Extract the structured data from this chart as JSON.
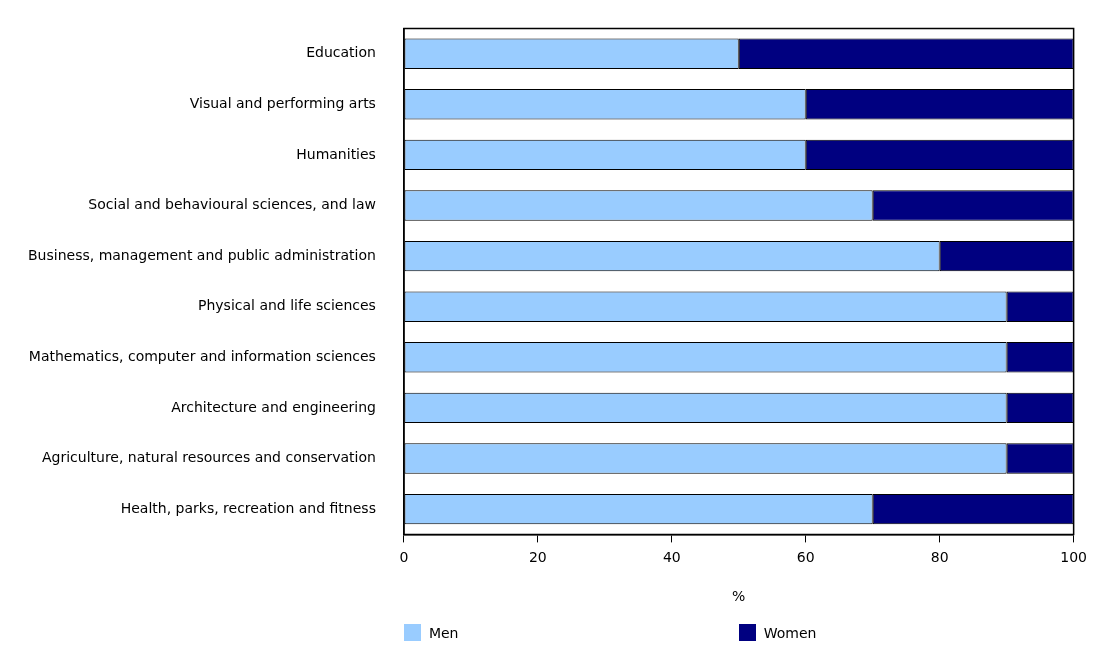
{
  "chart_data": {
    "type": "bar",
    "orientation": "horizontal",
    "stacked": true,
    "xlabel": "%",
    "categories": [
      "Education",
      "Visual and performing arts",
      "Humanities",
      "Social and behavioural sciences, and law",
      "Business, management and public administration",
      "Physical and life sciences",
      "Mathematics, computer and information sciences",
      "Architecture and engineering",
      "Agriculture, natural resources and conservation",
      "Health, parks, recreation and fitness"
    ],
    "series": [
      {
        "name": "Men",
        "color": "#99ccff",
        "values": [
          50,
          60,
          60,
          70,
          80,
          90,
          90,
          90,
          90,
          70
        ]
      },
      {
        "name": "Women",
        "color": "#000080",
        "values": [
          50,
          40,
          40,
          30,
          20,
          10,
          10,
          10,
          10,
          30
        ]
      }
    ],
    "xlim": [
      0,
      100
    ],
    "xticks": [
      0,
      20,
      40,
      60,
      80,
      100
    ],
    "grid": false,
    "legend": "bottom"
  }
}
